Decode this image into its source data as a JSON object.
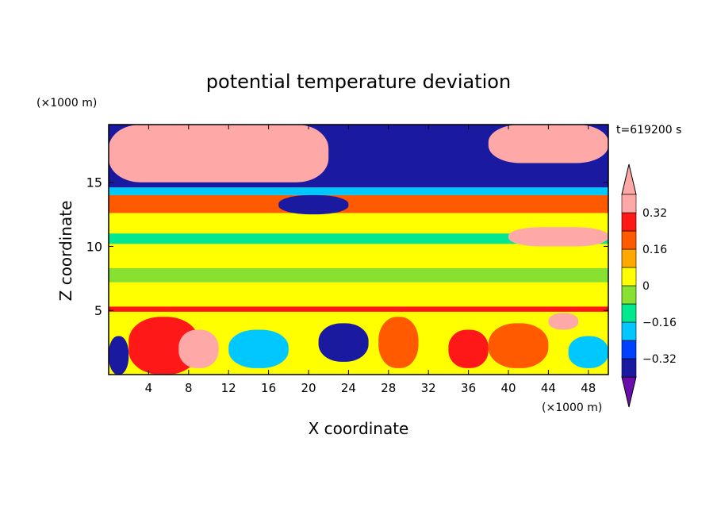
{
  "chart_data": {
    "type": "heatmap",
    "title": "potential temperature deviation",
    "xlabel": "X coordinate",
    "ylabel": "Z coordinate",
    "x_unit": "(×1000 m)",
    "y_unit": "(×1000 m)",
    "time_label": "t=619200 s",
    "xlim": [
      0,
      50
    ],
    "ylim": [
      0,
      19.5
    ],
    "x_ticks": [
      4,
      8,
      12,
      16,
      20,
      24,
      28,
      32,
      36,
      40,
      44,
      48
    ],
    "y_ticks": [
      5,
      10,
      15
    ],
    "colorbar": {
      "levels": [
        -0.4,
        -0.32,
        -0.24,
        -0.16,
        -0.08,
        0,
        0.08,
        0.16,
        0.24,
        0.32,
        0.4
      ],
      "tick_labels": [
        "0.32",
        "0.16",
        "0",
        "−0.16",
        "−0.32"
      ],
      "tick_values": [
        0.32,
        0.16,
        0,
        -0.16,
        -0.32
      ],
      "colors": [
        "#6a0dad",
        "#1a1aa0",
        "#0040ff",
        "#00c8ff",
        "#00e890",
        "#88e030",
        "#ffff00",
        "#ffa800",
        "#ff5a00",
        "#ff1818",
        "#ffa8a8"
      ],
      "extend": "both"
    },
    "regions": [
      {
        "x": [
          0,
          50
        ],
        "z": [
          0,
          19.5
        ],
        "value": 0.02
      },
      {
        "x": [
          0,
          50
        ],
        "z": [
          5.2,
          14.2
        ],
        "value": 0.05
      },
      {
        "x": [
          0,
          50
        ],
        "z": [
          12.6,
          14.0
        ],
        "value": 0.18
      },
      {
        "x": [
          0,
          50
        ],
        "z": [
          10.2,
          11.0
        ],
        "value": -0.1
      },
      {
        "x": [
          0,
          50
        ],
        "z": [
          7.2,
          8.3
        ],
        "value": -0.02
      },
      {
        "x": [
          0,
          50
        ],
        "z": [
          0,
          5.1
        ],
        "value": 0.05
      },
      {
        "x": [
          0,
          50
        ],
        "z": [
          4.9,
          5.3
        ],
        "value": 0.28
      },
      {
        "x": [
          0,
          50
        ],
        "z": [
          14.0,
          14.6
        ],
        "value": -0.2
      },
      {
        "x": [
          0,
          50
        ],
        "z": [
          14.6,
          19.5
        ],
        "value": -0.36
      },
      {
        "x": [
          0,
          22
        ],
        "z": [
          15.0,
          19.5
        ],
        "value": 0.4
      },
      {
        "x": [
          38,
          50
        ],
        "z": [
          16.5,
          19.5
        ],
        "value": 0.4
      },
      {
        "x": [
          17,
          24
        ],
        "z": [
          12.5,
          14.0
        ],
        "value": -0.36
      },
      {
        "x": [
          40,
          50
        ],
        "z": [
          10.0,
          11.5
        ],
        "value": 0.4
      },
      {
        "x": [
          0,
          2
        ],
        "z": [
          0,
          3
        ],
        "value": -0.4
      },
      {
        "x": [
          2,
          9
        ],
        "z": [
          0,
          4.5
        ],
        "value": 0.28
      },
      {
        "x": [
          7,
          11
        ],
        "z": [
          0.5,
          3.5
        ],
        "value": 0.4
      },
      {
        "x": [
          12,
          18
        ],
        "z": [
          0.5,
          3.5
        ],
        "value": -0.2
      },
      {
        "x": [
          21,
          26
        ],
        "z": [
          1,
          4
        ],
        "value": -0.36
      },
      {
        "x": [
          27,
          31
        ],
        "z": [
          0.5,
          4.5
        ],
        "value": 0.2
      },
      {
        "x": [
          34,
          38
        ],
        "z": [
          0.5,
          3.5
        ],
        "value": 0.24
      },
      {
        "x": [
          38,
          44
        ],
        "z": [
          0.5,
          4.0
        ],
        "value": 0.16
      },
      {
        "x": [
          44,
          47
        ],
        "z": [
          3.5,
          4.8
        ],
        "value": 0.4
      },
      {
        "x": [
          46,
          50
        ],
        "z": [
          0.5,
          3.0
        ],
        "value": -0.2
      }
    ]
  }
}
